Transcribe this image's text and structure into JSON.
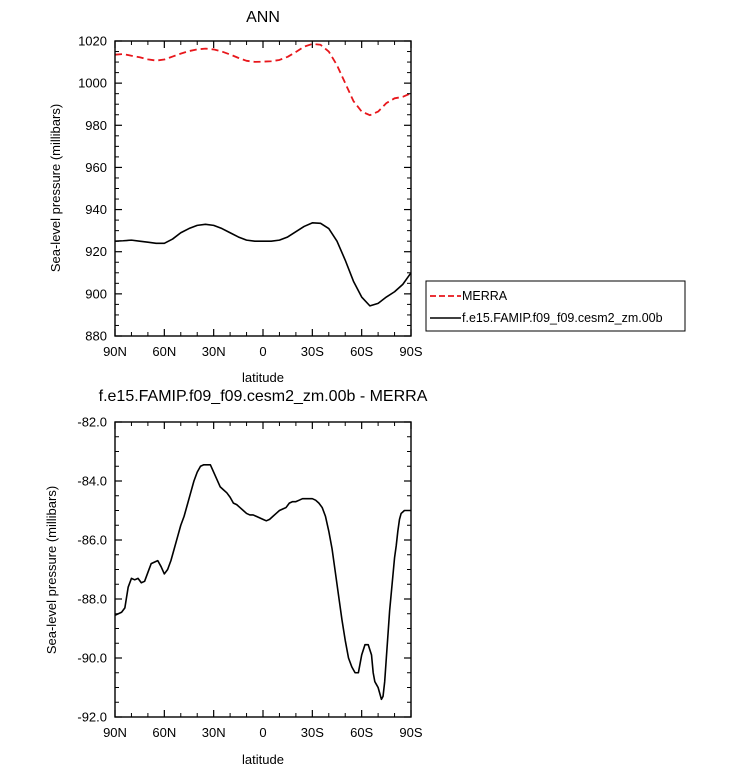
{
  "chart_data": [
    {
      "type": "line",
      "title": "ANN",
      "xlabel": "latitude",
      "ylabel": "Sea-level pressure (millibars)",
      "xlim": [
        90,
        -90
      ],
      "ylim": [
        880,
        1020
      ],
      "x_ticks": [
        90,
        60,
        30,
        0,
        -30,
        -60,
        -90
      ],
      "x_tick_labels": [
        "90N",
        "60N",
        "30N",
        "0",
        "30S",
        "60S",
        "90S"
      ],
      "y_ticks": [
        880,
        900,
        920,
        940,
        960,
        980,
        1000,
        1020
      ],
      "y_tick_labels": [
        "880",
        "900",
        "920",
        "940",
        "960",
        "980",
        "1000",
        "1020"
      ],
      "legend": "right",
      "series": [
        {
          "name": "MERRA",
          "color": "#e8161b",
          "dash": "dashed",
          "x": [
            90,
            85,
            80,
            75,
            70,
            65,
            60,
            55,
            50,
            45,
            40,
            35,
            30,
            25,
            20,
            15,
            10,
            5,
            0,
            -5,
            -10,
            -15,
            -20,
            -25,
            -30,
            -35,
            -40,
            -45,
            -50,
            -55,
            -60,
            -65,
            -70,
            -75,
            -80,
            -85,
            -90
          ],
          "values": [
            1013.5,
            1013.8,
            1013.0,
            1012.3,
            1011.3,
            1010.7,
            1011.2,
            1012.6,
            1014.0,
            1015.2,
            1016.0,
            1016.4,
            1016.0,
            1015.0,
            1013.6,
            1012.0,
            1010.6,
            1010.1,
            1010.2,
            1010.4,
            1011.0,
            1012.5,
            1014.8,
            1017.3,
            1018.6,
            1018.2,
            1015.0,
            1008.5,
            1000.0,
            991.5,
            986.5,
            984.8,
            986.5,
            990.5,
            992.8,
            993.5,
            995.2
          ]
        },
        {
          "name": "f.e15.FAMIP.f09_f09.cesm2_zm.00b",
          "color": "#000000",
          "dash": "solid",
          "x": [
            90,
            85,
            80,
            75,
            70,
            65,
            60,
            55,
            50,
            45,
            40,
            35,
            30,
            25,
            20,
            15,
            10,
            5,
            0,
            -5,
            -10,
            -15,
            -20,
            -25,
            -30,
            -35,
            -40,
            -45,
            -50,
            -55,
            -60,
            -65,
            -70,
            -75,
            -80,
            -85,
            -90
          ],
          "values": [
            925.0,
            925.2,
            925.5,
            925.0,
            924.5,
            924.0,
            924.0,
            926.0,
            929.0,
            931.0,
            932.5,
            933.0,
            932.5,
            931.0,
            929.0,
            927.0,
            925.5,
            925.0,
            925.0,
            925.0,
            925.5,
            927.0,
            929.5,
            932.0,
            933.7,
            933.5,
            931.0,
            925.0,
            916.0,
            906.0,
            898.5,
            894.3,
            895.5,
            898.5,
            901.0,
            904.5,
            910.0
          ]
        }
      ]
    },
    {
      "type": "line",
      "title": "f.e15.FAMIP.f09_f09.cesm2_zm.00b - MERRA",
      "xlabel": "latitude",
      "ylabel": "Sea-level pressure (millibars)",
      "xlim": [
        90,
        -90
      ],
      "ylim": [
        -92,
        -82
      ],
      "x_ticks": [
        90,
        60,
        30,
        0,
        -30,
        -60,
        -90
      ],
      "x_tick_labels": [
        "90N",
        "60N",
        "30N",
        "0",
        "30S",
        "60S",
        "90S"
      ],
      "y_ticks": [
        -92,
        -90,
        -88,
        -86,
        -84,
        -82
      ],
      "y_tick_labels": [
        "-92.0",
        "-90.0",
        "-88.0",
        "-86.0",
        "-84.0",
        "-82.0"
      ],
      "series": [
        {
          "color": "#000000",
          "dash": "solid",
          "x": [
            90,
            86,
            84,
            82,
            80,
            78,
            76,
            74,
            72,
            70,
            68,
            66,
            64,
            62,
            60,
            58,
            56,
            54,
            52,
            50,
            48,
            46,
            44,
            42,
            40,
            38,
            36,
            34,
            32,
            30,
            28,
            26,
            24,
            22,
            20,
            18,
            16,
            14,
            12,
            10,
            8,
            6,
            4,
            2,
            0,
            -2,
            -4,
            -6,
            -8,
            -10,
            -12,
            -14,
            -16,
            -18,
            -20,
            -22,
            -24,
            -26,
            -28,
            -30,
            -32,
            -34,
            -36,
            -38,
            -40,
            -42,
            -44,
            -46,
            -48,
            -50,
            -52,
            -54,
            -56,
            -58,
            -60,
            -62,
            -64,
            -66,
            -67,
            -68,
            -69,
            -70,
            -71,
            -72,
            -73,
            -74,
            -75,
            -76,
            -77,
            -78,
            -79,
            -80,
            -81,
            -82,
            -83,
            -84,
            -85,
            -86,
            -87,
            -88,
            -89,
            -90
          ],
          "values": [
            -88.55,
            -88.45,
            -88.3,
            -87.6,
            -87.3,
            -87.35,
            -87.3,
            -87.45,
            -87.4,
            -87.1,
            -86.8,
            -86.75,
            -86.7,
            -86.9,
            -87.15,
            -87.0,
            -86.7,
            -86.3,
            -85.9,
            -85.5,
            -85.2,
            -84.8,
            -84.4,
            -84.0,
            -83.7,
            -83.5,
            -83.45,
            -83.45,
            -83.45,
            -83.7,
            -83.95,
            -84.2,
            -84.3,
            -84.4,
            -84.55,
            -84.75,
            -84.8,
            -84.9,
            -85.0,
            -85.1,
            -85.15,
            -85.15,
            -85.2,
            -85.25,
            -85.3,
            -85.35,
            -85.3,
            -85.2,
            -85.1,
            -85.0,
            -84.95,
            -84.9,
            -84.75,
            -84.7,
            -84.7,
            -84.65,
            -84.6,
            -84.6,
            -84.6,
            -84.6,
            -84.65,
            -84.75,
            -84.9,
            -85.2,
            -85.7,
            -86.3,
            -87.1,
            -87.9,
            -88.7,
            -89.4,
            -90.0,
            -90.3,
            -90.5,
            -90.5,
            -89.9,
            -89.55,
            -89.55,
            -89.9,
            -90.5,
            -90.8,
            -90.9,
            -91.0,
            -91.2,
            -91.4,
            -91.3,
            -90.8,
            -90.0,
            -89.2,
            -88.4,
            -87.8,
            -87.2,
            -86.6,
            -86.2,
            -85.7,
            -85.3,
            -85.1,
            -85.05,
            -85.0,
            -85.0,
            -85.0,
            -85.0,
            -85.0
          ]
        }
      ]
    }
  ]
}
